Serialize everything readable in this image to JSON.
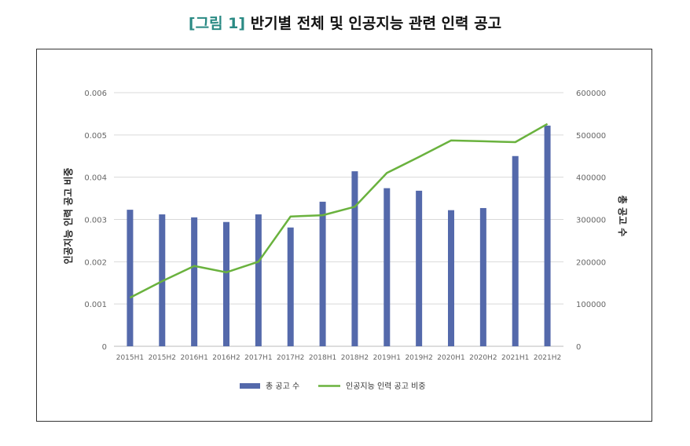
{
  "title": {
    "tag": "[그림 1]",
    "text": "반기별 전체 및 인공지능 관련 인력 공고"
  },
  "chart_data": {
    "type": "bar+line",
    "categories": [
      "2015H1",
      "2015H2",
      "2016H1",
      "2016H2",
      "2017H1",
      "2017H2",
      "2018H1",
      "2018H2",
      "2019H1",
      "2019H2",
      "2020H1",
      "2020H2",
      "2021H1",
      "2021H2"
    ],
    "series": [
      {
        "name": "총 공고 수",
        "type": "bar",
        "axis": "right",
        "color": "#5469ab",
        "values": [
          323000,
          312000,
          305000,
          294000,
          312000,
          281000,
          342000,
          414000,
          374000,
          368000,
          322000,
          327000,
          450000,
          522000
        ]
      },
      {
        "name": "인공지능 인력 공고 비중",
        "type": "line",
        "axis": "left",
        "color": "#6ab23e",
        "values": [
          0.00115,
          0.00154,
          0.0019,
          0.00175,
          0.002,
          0.00307,
          0.0031,
          0.0033,
          0.0041,
          0.00448,
          0.00487,
          0.00485,
          0.00483,
          0.00526
        ]
      }
    ],
    "ylabel_left": "인공지능 인력 공고 비중",
    "ylabel_right": "총 공고 수",
    "ylim_left": [
      0,
      0.006
    ],
    "ylim_right": [
      0,
      600000
    ],
    "yticks_left": [
      "0",
      "0.001",
      "0.002",
      "0.003",
      "0.004",
      "0.005",
      "0.006"
    ],
    "yticks_right": [
      "0",
      "100000",
      "200000",
      "300000",
      "400000",
      "500000",
      "600000"
    ],
    "grid": true,
    "legend_position": "bottom"
  }
}
